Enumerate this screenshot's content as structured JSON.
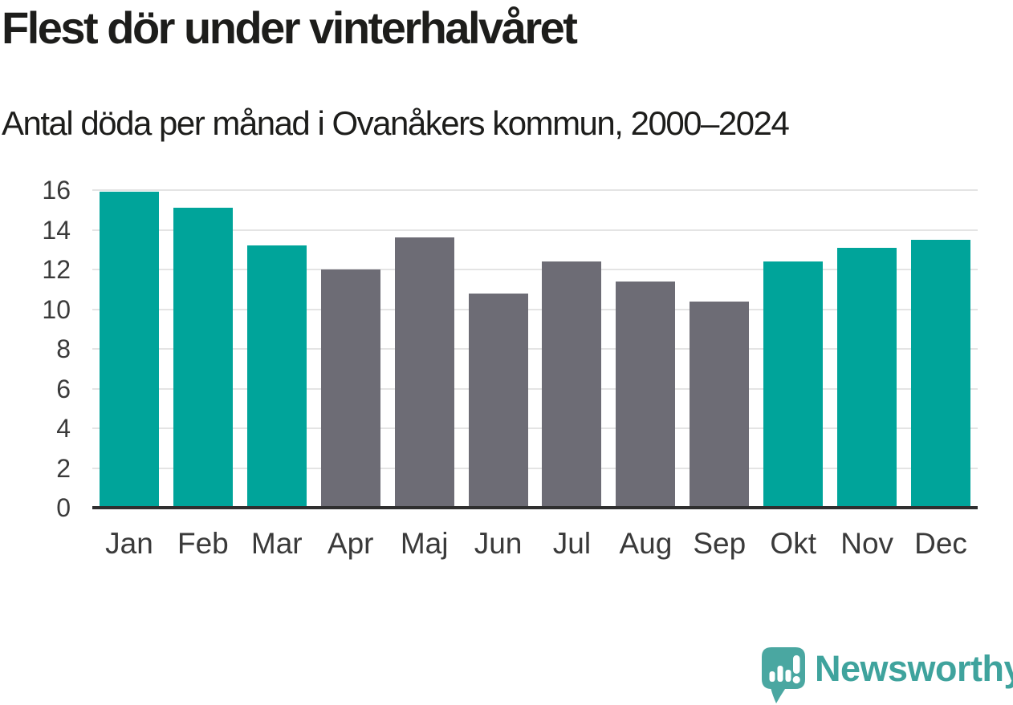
{
  "header": {
    "title": "Flest dör under vinterhalvåret",
    "subtitle": "Antal döda per månad i Ovanåkers kommun, 2000–2024"
  },
  "chart_data": {
    "type": "bar",
    "title": "Flest dör under vinterhalvåret",
    "subtitle": "Antal döda per månad i Ovanåkers kommun, 2000–2024",
    "categories": [
      "Jan",
      "Feb",
      "Mar",
      "Apr",
      "Maj",
      "Jun",
      "Jul",
      "Aug",
      "Sep",
      "Okt",
      "Nov",
      "Dec"
    ],
    "values": [
      15.9,
      15.1,
      13.2,
      12.0,
      13.6,
      10.8,
      12.4,
      11.4,
      10.4,
      12.4,
      13.1,
      13.5
    ],
    "bar_colors": [
      "#00a49a",
      "#00a49a",
      "#00a49a",
      "#6d6c75",
      "#6d6c75",
      "#6d6c75",
      "#6d6c75",
      "#6d6c75",
      "#6d6c75",
      "#00a49a",
      "#00a49a",
      "#00a49a"
    ],
    "highlight_color": "#00a49a",
    "base_color": "#6d6c75",
    "xlabel": "",
    "ylabel": "",
    "ylim": [
      0,
      16
    ],
    "yticks": [
      0,
      2,
      4,
      6,
      8,
      10,
      12,
      14,
      16
    ],
    "grid": true,
    "gridline_color": "#e4e4e4",
    "axis_line_color": "#2f2f2f",
    "legend_position": "none"
  },
  "branding": {
    "logo_text": "Newsworthy",
    "logo_text_color": "#3fa39d",
    "logo_mark_color": "#4aa7a1"
  }
}
